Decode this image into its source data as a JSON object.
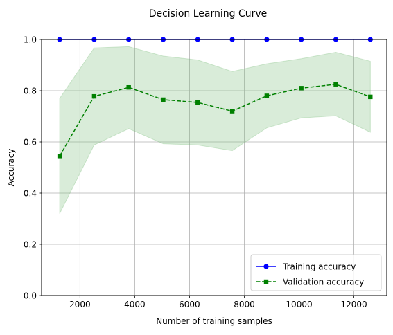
{
  "chart_data": {
    "type": "line",
    "title": "Decision Learning Curve",
    "xlabel": "Number of training samples",
    "ylabel": "Accuracy",
    "xlim": [
      600,
      13200
    ],
    "ylim": [
      0.0,
      1.0
    ],
    "xticks": [
      2000,
      4000,
      6000,
      8000,
      10000,
      12000
    ],
    "yticks": [
      0.0,
      0.2,
      0.4,
      0.6,
      0.8,
      1.0
    ],
    "xtick_labels": [
      "2000",
      "4000",
      "6000",
      "8000",
      "10000",
      "12000"
    ],
    "ytick_labels": [
      "0.0",
      "0.2",
      "0.4",
      "0.6",
      "0.8",
      "1.0"
    ],
    "grid": true,
    "legend_position": "lower-right",
    "x": [
      1260,
      2520,
      3780,
      5040,
      6300,
      7560,
      8820,
      10080,
      11340,
      12600
    ],
    "series": [
      {
        "name": "Training accuracy",
        "color": "#0000ff",
        "marker": "circle",
        "linestyle": "solid",
        "values": [
          1.0,
          1.0,
          1.0,
          1.0,
          1.0,
          1.0,
          1.0,
          1.0,
          1.0,
          1.0
        ]
      },
      {
        "name": "Validation accuracy",
        "color": "#008000",
        "marker": "square",
        "linestyle": "dashed",
        "values": [
          0.545,
          0.778,
          0.813,
          0.765,
          0.754,
          0.72,
          0.78,
          0.81,
          0.825,
          0.776
        ],
        "band_upper": [
          0.77,
          0.967,
          0.972,
          0.935,
          0.92,
          0.875,
          0.905,
          0.925,
          0.95,
          0.915
        ],
        "band_lower": [
          0.32,
          0.588,
          0.652,
          0.593,
          0.588,
          0.566,
          0.655,
          0.694,
          0.702,
          0.638
        ],
        "band_color": "#80c080"
      }
    ]
  }
}
